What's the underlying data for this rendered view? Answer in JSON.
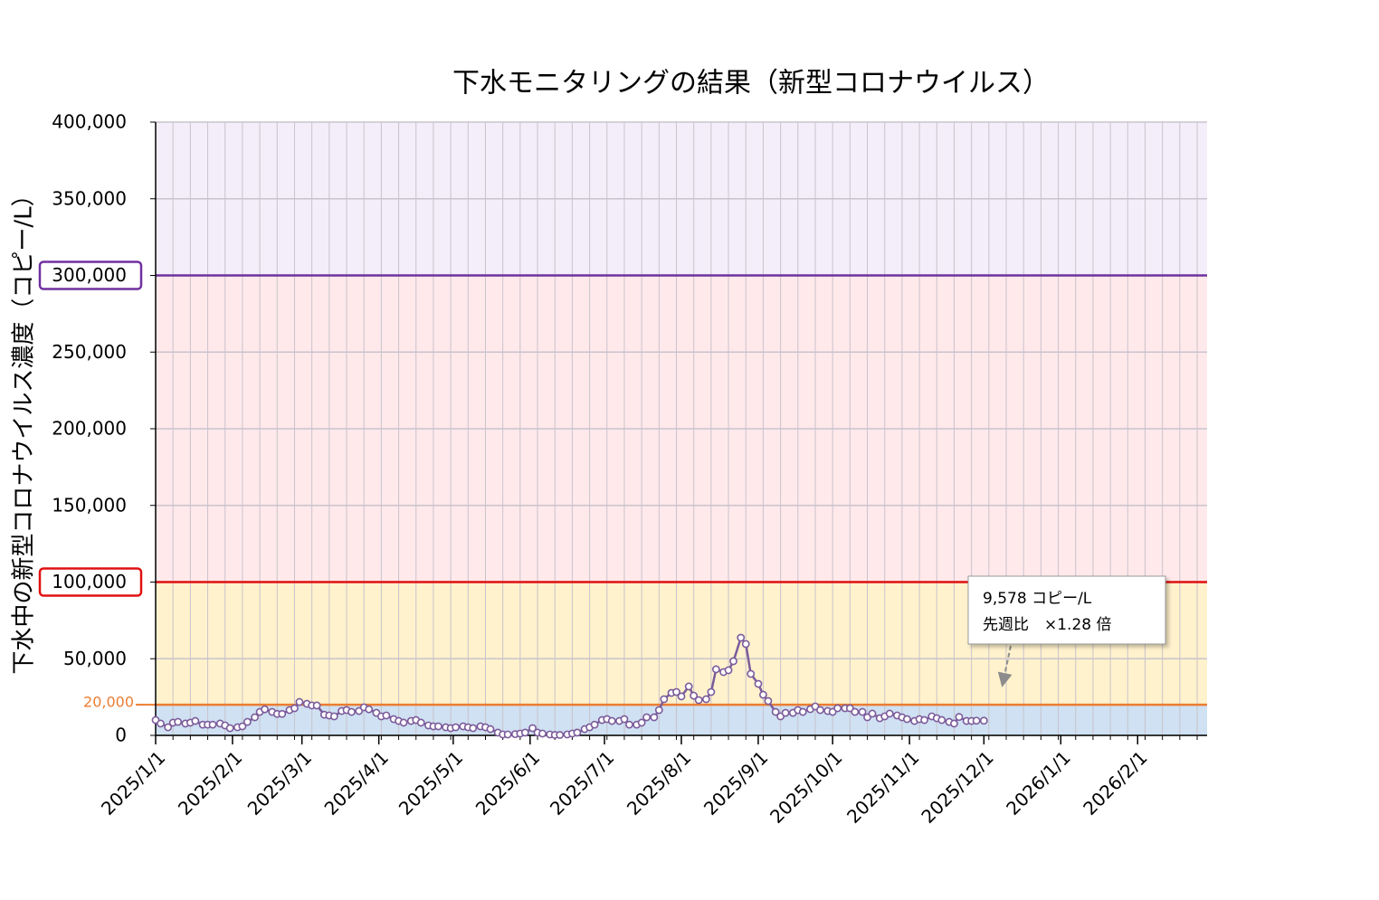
{
  "chart_data": {
    "type": "line",
    "title": "下水モニタリングの結果（新型コロナウイルス）",
    "ylabel": "下水中の新型コロナウイルス濃度（コピー/L）",
    "x": [
      "2025/1/1",
      "2025/1/3",
      "2025/1/6",
      "2025/1/8",
      "2025/1/10",
      "2025/1/13",
      "2025/1/15",
      "2025/1/17",
      "2025/1/20",
      "2025/1/22",
      "2025/1/24",
      "2025/1/27",
      "2025/1/29",
      "2025/1/31",
      "2025/2/3",
      "2025/2/5",
      "2025/2/7",
      "2025/2/10",
      "2025/2/12",
      "2025/2/14",
      "2025/2/17",
      "2025/2/19",
      "2025/2/21",
      "2025/2/24",
      "2025/2/26",
      "2025/2/28",
      "2025/3/3",
      "2025/3/5",
      "2025/3/7",
      "2025/3/10",
      "2025/3/12",
      "2025/3/14",
      "2025/3/17",
      "2025/3/19",
      "2025/3/21",
      "2025/3/24",
      "2025/3/26",
      "2025/3/28",
      "2025/3/31",
      "2025/4/2",
      "2025/4/4",
      "2025/4/7",
      "2025/4/9",
      "2025/4/11",
      "2025/4/14",
      "2025/4/16",
      "2025/4/18",
      "2025/4/21",
      "2025/4/23",
      "2025/4/25",
      "2025/4/28",
      "2025/4/30",
      "2025/5/2",
      "2025/5/5",
      "2025/5/7",
      "2025/5/9",
      "2025/5/12",
      "2025/5/14",
      "2025/5/16",
      "2025/5/19",
      "2025/5/21",
      "2025/5/23",
      "2025/5/26",
      "2025/5/28",
      "2025/5/30",
      "2025/6/2",
      "2025/6/4",
      "2025/6/6",
      "2025/6/9",
      "2025/6/11",
      "2025/6/13",
      "2025/6/16",
      "2025/6/18",
      "2025/6/20",
      "2025/6/23",
      "2025/6/25",
      "2025/6/27",
      "2025/6/30",
      "2025/7/2",
      "2025/7/4",
      "2025/7/7",
      "2025/7/9",
      "2025/7/11",
      "2025/7/14",
      "2025/7/16",
      "2025/7/18",
      "2025/7/21",
      "2025/7/23",
      "2025/7/25",
      "2025/7/28",
      "2025/7/30",
      "2025/8/1",
      "2025/8/4",
      "2025/8/6",
      "2025/8/8",
      "2025/8/11",
      "2025/8/13",
      "2025/8/15",
      "2025/8/18",
      "2025/8/20",
      "2025/8/22",
      "2025/8/25",
      "2025/8/27",
      "2025/8/29",
      "2025/9/1",
      "2025/9/3",
      "2025/9/5",
      "2025/9/8",
      "2025/9/10",
      "2025/9/12",
      "2025/9/15",
      "2025/9/17",
      "2025/9/19",
      "2025/9/22",
      "2025/9/24",
      "2025/9/26",
      "2025/9/29",
      "2025/10/1",
      "2025/10/3",
      "2025/10/6",
      "2025/10/8",
      "2025/10/10",
      "2025/10/13",
      "2025/10/15",
      "2025/10/17",
      "2025/10/20",
      "2025/10/22",
      "2025/10/24",
      "2025/10/27",
      "2025/10/29",
      "2025/10/31",
      "2025/11/3",
      "2025/11/5",
      "2025/11/7",
      "2025/11/10",
      "2025/11/12",
      "2025/11/14",
      "2025/11/17",
      "2025/11/19",
      "2025/11/21",
      "2025/11/24",
      "2025/11/26",
      "2025/11/28",
      "2025/12/1"
    ],
    "values": [
      10000,
      7700,
      5300,
      8300,
      8800,
      7700,
      8300,
      9400,
      7000,
      7000,
      7000,
      7700,
      6500,
      4700,
      5300,
      5900,
      8800,
      11800,
      15300,
      17000,
      15300,
      14000,
      14000,
      16500,
      17700,
      21800,
      20600,
      19500,
      19500,
      13500,
      13000,
      12400,
      15900,
      16500,
      15300,
      15900,
      18300,
      17000,
      14700,
      12400,
      13000,
      10600,
      9400,
      8300,
      9400,
      10000,
      8300,
      6500,
      5900,
      5900,
      5300,
      4700,
      5300,
      5900,
      5300,
      4700,
      5900,
      5300,
      4100,
      1800,
      600,
      600,
      800,
      1200,
      1800,
      4700,
      1800,
      1200,
      600,
      300,
      300,
      600,
      1200,
      1800,
      4100,
      5300,
      7000,
      10000,
      10600,
      9400,
      9400,
      10600,
      7000,
      7000,
      8300,
      11800,
      11800,
      16500,
      23600,
      27700,
      28300,
      25400,
      31900,
      25900,
      23000,
      23600,
      28300,
      43100,
      41300,
      42500,
      48400,
      63700,
      59600,
      40100,
      33600,
      26500,
      22400,
      15300,
      12400,
      14700,
      14700,
      16500,
      15300,
      17100,
      18900,
      16500,
      15900,
      15300,
      17700,
      17700,
      17700,
      15300,
      15300,
      11800,
      14200,
      11200,
      12400,
      14200,
      13000,
      11800,
      10600,
      9400,
      10600,
      10000,
      12400,
      11200,
      10000,
      8800,
      7700,
      12000,
      9400,
      9400,
      9600,
      9578
    ],
    "color": "#7b5b9b",
    "marker_fill": "#ffffff",
    "xlim": [
      "2025/1/1",
      "2026/3/1"
    ],
    "xticks": [
      "2025/1/1",
      "2025/2/1",
      "2025/3/1",
      "2025/4/1",
      "2025/5/1",
      "2025/6/1",
      "2025/7/1",
      "2025/8/1",
      "2025/9/1",
      "2025/10/1",
      "2025/11/1",
      "2025/12/1",
      "2026/1/1",
      "2026/2/1"
    ],
    "minor_tick_days": 7,
    "ylim": [
      0,
      400000
    ],
    "yticks": [
      0,
      {
        "value": 50000,
        "label": "50,000"
      },
      {
        "value": 100000,
        "label": "100,000"
      },
      {
        "value": 150000,
        "label": "150,000"
      },
      {
        "value": 200000,
        "label": "200,000"
      },
      {
        "value": 250000,
        "label": "250,000"
      },
      {
        "value": 300000,
        "label": "300,000"
      },
      {
        "value": 350000,
        "label": "350,000"
      },
      {
        "value": 400000,
        "label": "400,000"
      }
    ],
    "grid": true,
    "thresholds": [
      {
        "value": 20000,
        "label": "20,000",
        "color": "#ed7d31"
      },
      {
        "value": 100000,
        "color": "#e01010"
      },
      {
        "value": 300000,
        "color": "#7030a0"
      }
    ],
    "band_colors": [
      "#cfe1f2",
      "#fff2cc",
      "#ffe9eb",
      "#f3eefa"
    ],
    "annotation": [
      "9,578 コピー/L",
      "先週比　×1.28 倍"
    ]
  }
}
